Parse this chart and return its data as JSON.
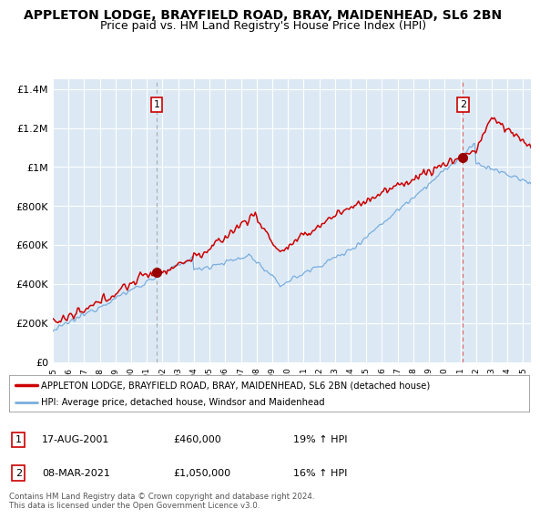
{
  "title": "APPLETON LODGE, BRAYFIELD ROAD, BRAY, MAIDENHEAD, SL6 2BN",
  "subtitle": "Price paid vs. HM Land Registry's House Price Index (HPI)",
  "title_fontsize": 10,
  "subtitle_fontsize": 9,
  "legend_line1": "APPLETON LODGE, BRAYFIELD ROAD, BRAY, MAIDENHEAD, SL6 2BN (detached house)",
  "legend_line2": "HPI: Average price, detached house, Windsor and Maidenhead",
  "sale1_date": "17-AUG-2001",
  "sale1_price": "£460,000",
  "sale1_hpi": "19% ↑ HPI",
  "sale2_date": "08-MAR-2021",
  "sale2_price": "£1,050,000",
  "sale2_hpi": "16% ↑ HPI",
  "footnote": "Contains HM Land Registry data © Crown copyright and database right 2024.\nThis data is licensed under the Open Government Licence v3.0.",
  "price_color": "#cc0000",
  "hpi_color": "#7aaddc",
  "sale_marker_color": "#990000",
  "dashed_line1_color": "#aaaaaa",
  "dashed_line2_color": "#dd6666",
  "ylim_min": 0,
  "ylim_max": 1450000,
  "yticks": [
    0,
    200000,
    400000,
    600000,
    800000,
    1000000,
    1200000,
    1400000
  ],
  "ytick_labels": [
    "£0",
    "£200K",
    "£400K",
    "£600K",
    "£800K",
    "£1M",
    "£1.2M",
    "£1.4M"
  ],
  "sale1_year": 2001.62,
  "sale1_value": 460000,
  "sale2_year": 2021.17,
  "sale2_value": 1050000,
  "chart_bg_color": "#dce9f5",
  "fig_bg_color": "#ffffff",
  "grid_color": "#ffffff"
}
